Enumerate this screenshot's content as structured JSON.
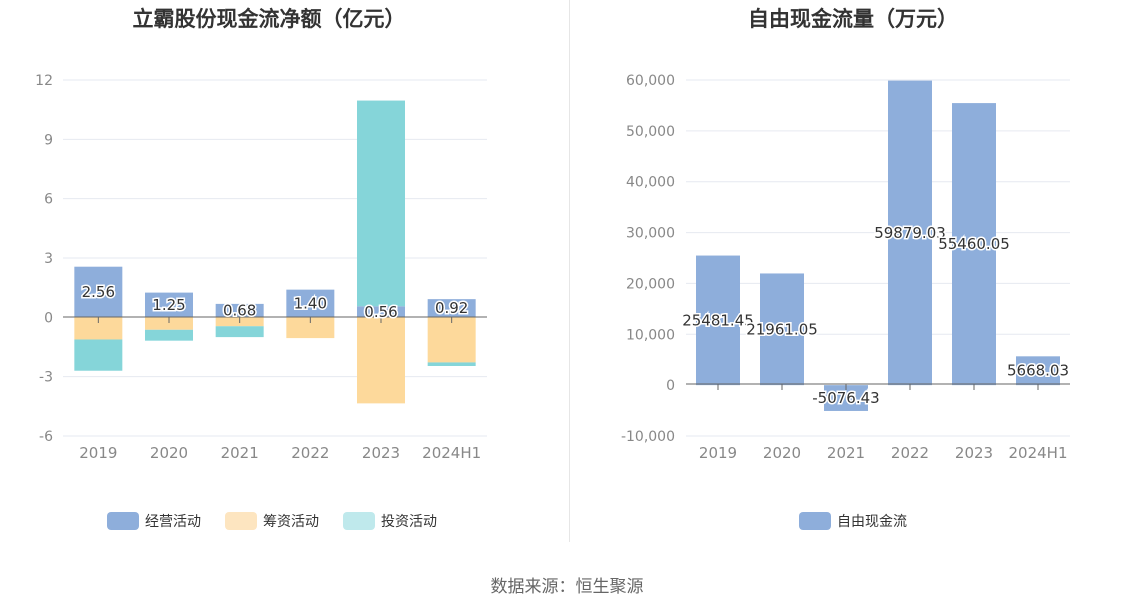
{
  "source": "数据来源：恒生聚源",
  "chart_data": [
    {
      "type": "bar",
      "stacked": true,
      "title": "立霸股份现金流净额（亿元）",
      "categories": [
        "2019",
        "2020",
        "2021",
        "2022",
        "2023",
        "2024H1"
      ],
      "ylim": [
        -6,
        12
      ],
      "yticks": [
        "12",
        "9",
        "6",
        "3",
        "0",
        "-3",
        "-6"
      ],
      "grid": true,
      "legend_position": "bottom",
      "series": [
        {
          "name": "经营活动",
          "color": "#8eaedb",
          "values": [
            2.56,
            1.25,
            0.68,
            1.4,
            0.56,
            0.92
          ],
          "labels": [
            "2.56",
            "1.25",
            "0.68",
            "1.40",
            "0.56",
            "0.92"
          ]
        },
        {
          "name": "筹资活动",
          "color": "#fdd99b",
          "legend_color": "#fde5c0",
          "values": [
            -1.12,
            -0.63,
            -0.45,
            -1.05,
            -4.35,
            -2.28
          ]
        },
        {
          "name": "投资活动",
          "color": "#85d5d9",
          "legend_color": "#bfe9ec",
          "values": [
            -1.58,
            -0.55,
            -0.55,
            0.0,
            10.4,
            -0.18
          ]
        }
      ]
    },
    {
      "type": "bar",
      "title": "自由现金流量（万元）",
      "categories": [
        "2019",
        "2020",
        "2021",
        "2022",
        "2023",
        "2024H1"
      ],
      "ylim": [
        -10000,
        60000
      ],
      "yticks": [
        "60,000",
        "50,000",
        "40,000",
        "30,000",
        "20,000",
        "10,000",
        "0",
        "-10,000"
      ],
      "grid": true,
      "legend_position": "bottom",
      "series": [
        {
          "name": "自由现金流",
          "color": "#8eaedb",
          "values": [
            25481.45,
            21961.05,
            -5076.43,
            59879.03,
            55460.05,
            5668.03
          ],
          "labels": [
            "25481.45",
            "21961.05",
            "-5076.43",
            "59879.03",
            "55460.05",
            "5668.03"
          ]
        }
      ]
    }
  ]
}
